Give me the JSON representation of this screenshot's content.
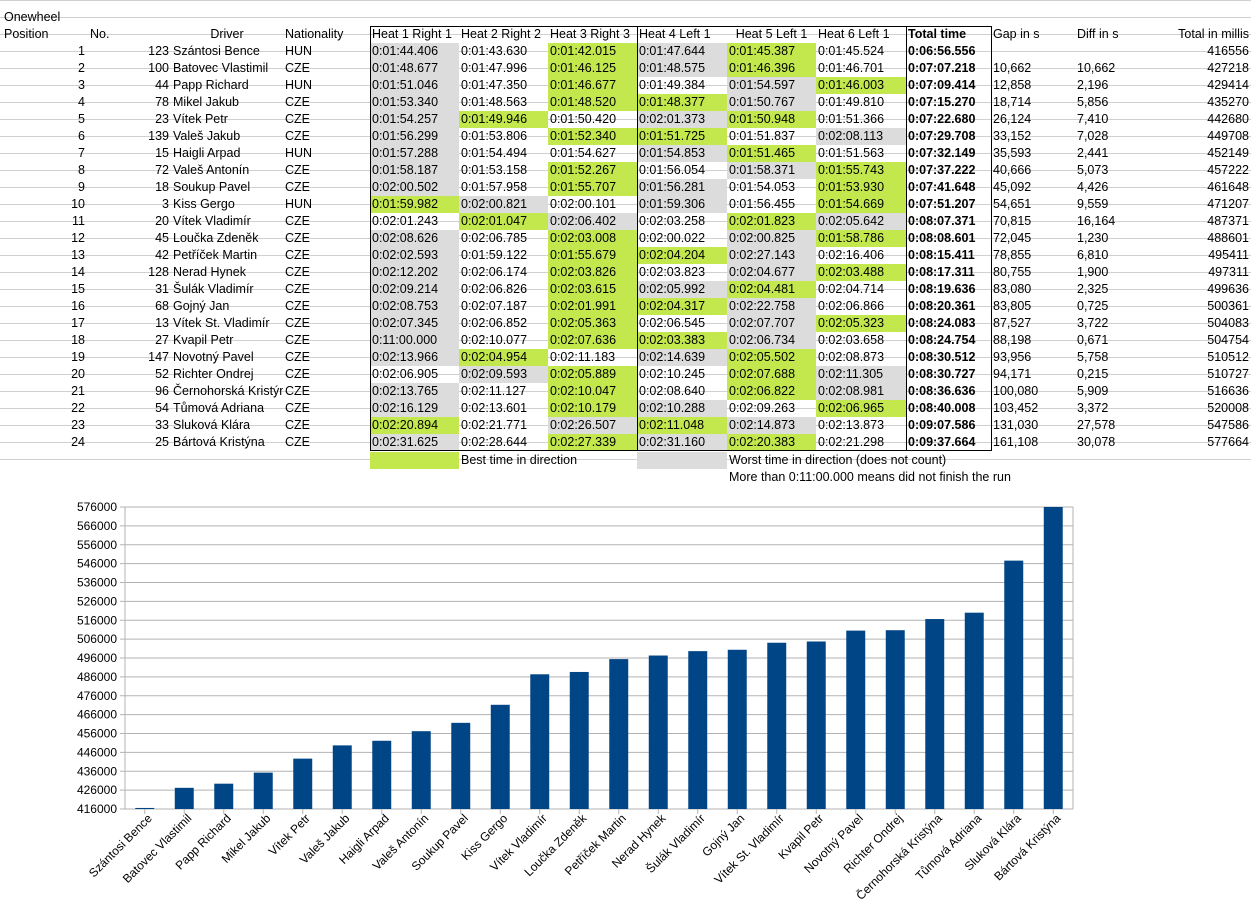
{
  "sheet": {
    "title": "Onewheel",
    "headers": [
      "Position",
      "No.",
      "Driver",
      "Nationality",
      "Heat 1 Right 1",
      "Heat 2 Right 2",
      "Heat 3 Right 3",
      "Heat 4 Left 1",
      "Heat 5 Left 1",
      "Heat 6 Left 1",
      "Total time",
      "Gap in s",
      "Diff in s",
      "Total in millis"
    ],
    "rows": [
      {
        "pos": "1",
        "no": "123",
        "driver": "Szántosi Bence",
        "nat": "HUN",
        "heats": [
          "0:01:44.406",
          "0:01:43.630",
          "0:01:42.015",
          "0:01:47.644",
          "0:01:45.387",
          "0:01:45.524"
        ],
        "marks": [
          "w",
          "",
          "b",
          "w",
          "b",
          ""
        ],
        "total": "0:06:56.556",
        "gap": "",
        "diff": "",
        "millis": "416556"
      },
      {
        "pos": "2",
        "no": "100",
        "driver": "Batovec Vlastimil",
        "nat": "CZE",
        "heats": [
          "0:01:48.677",
          "0:01:47.996",
          "0:01:46.125",
          "0:01:48.575",
          "0:01:46.396",
          "0:01:46.701"
        ],
        "marks": [
          "w",
          "",
          "b",
          "w",
          "b",
          ""
        ],
        "total": "0:07:07.218",
        "gap": "10,662",
        "diff": "10,662",
        "millis": "427218"
      },
      {
        "pos": "3",
        "no": "44",
        "driver": "Papp Richard",
        "nat": "HUN",
        "heats": [
          "0:01:51.046",
          "0:01:47.350",
          "0:01:46.677",
          "0:01:49.384",
          "0:01:54.597",
          "0:01:46.003"
        ],
        "marks": [
          "w",
          "",
          "b",
          "",
          "w",
          "b"
        ],
        "total": "0:07:09.414",
        "gap": "12,858",
        "diff": "2,196",
        "millis": "429414"
      },
      {
        "pos": "4",
        "no": "78",
        "driver": "Mikel Jakub",
        "nat": "CZE",
        "heats": [
          "0:01:53.340",
          "0:01:48.563",
          "0:01:48.520",
          "0:01:48.377",
          "0:01:50.767",
          "0:01:49.810"
        ],
        "marks": [
          "w",
          "",
          "b",
          "b",
          "w",
          ""
        ],
        "total": "0:07:15.270",
        "gap": "18,714",
        "diff": "5,856",
        "millis": "435270"
      },
      {
        "pos": "5",
        "no": "23",
        "driver": "Vítek Petr",
        "nat": "CZE",
        "heats": [
          "0:01:54.257",
          "0:01:49.946",
          "0:01:50.420",
          "0:02:01.373",
          "0:01:50.948",
          "0:01:51.366"
        ],
        "marks": [
          "w",
          "b",
          "",
          "w",
          "b",
          ""
        ],
        "total": "0:07:22.680",
        "gap": "26,124",
        "diff": "7,410",
        "millis": "442680"
      },
      {
        "pos": "6",
        "no": "139",
        "driver": "Valeš Jakub",
        "nat": "CZE",
        "heats": [
          "0:01:56.299",
          "0:01:53.806",
          "0:01:52.340",
          "0:01:51.725",
          "0:01:51.837",
          "0:02:08.113"
        ],
        "marks": [
          "w",
          "",
          "b",
          "b",
          "",
          "w"
        ],
        "total": "0:07:29.708",
        "gap": "33,152",
        "diff": "7,028",
        "millis": "449708"
      },
      {
        "pos": "7",
        "no": "15",
        "driver": "Haigli Arpad",
        "nat": "HUN",
        "heats": [
          "0:01:57.288",
          "0:01:54.494",
          "0:01:54.627",
          "0:01:54.853",
          "0:01:51.465",
          "0:01:51.563"
        ],
        "marks": [
          "w",
          "",
          "",
          "w",
          "b",
          ""
        ],
        "total": "0:07:32.149",
        "gap": "35,593",
        "diff": "2,441",
        "millis": "452149"
      },
      {
        "pos": "8",
        "no": "72",
        "driver": "Valeš Antonín",
        "nat": "CZE",
        "heats": [
          "0:01:58.187",
          "0:01:53.158",
          "0:01:52.267",
          "0:01:56.054",
          "0:01:58.371",
          "0:01:55.743"
        ],
        "marks": [
          "w",
          "",
          "b",
          "",
          "w",
          "b"
        ],
        "total": "0:07:37.222",
        "gap": "40,666",
        "diff": "5,073",
        "millis": "457222"
      },
      {
        "pos": "9",
        "no": "18",
        "driver": "Soukup Pavel",
        "nat": "CZE",
        "heats": [
          "0:02:00.502",
          "0:01:57.958",
          "0:01:55.707",
          "0:01:56.281",
          "0:01:54.053",
          "0:01:53.930"
        ],
        "marks": [
          "w",
          "",
          "b",
          "w",
          "",
          "b"
        ],
        "total": "0:07:41.648",
        "gap": "45,092",
        "diff": "4,426",
        "millis": "461648"
      },
      {
        "pos": "10",
        "no": "3",
        "driver": "Kiss Gergo",
        "nat": "HUN",
        "heats": [
          "0:01:59.982",
          "0:02:00.821",
          "0:02:00.101",
          "0:01:59.306",
          "0:01:56.455",
          "0:01:54.669"
        ],
        "marks": [
          "b",
          "w",
          "",
          "w",
          "",
          "b"
        ],
        "total": "0:07:51.207",
        "gap": "54,651",
        "diff": "9,559",
        "millis": "471207"
      },
      {
        "pos": "11",
        "no": "20",
        "driver": "Vítek Vladimír",
        "nat": "CZE",
        "heats": [
          "0:02:01.243",
          "0:02:01.047",
          "0:02:06.402",
          "0:02:03.258",
          "0:02:01.823",
          "0:02:05.642"
        ],
        "marks": [
          "",
          "b",
          "w",
          "",
          "b",
          "w"
        ],
        "total": "0:08:07.371",
        "gap": "70,815",
        "diff": "16,164",
        "millis": "487371"
      },
      {
        "pos": "12",
        "no": "45",
        "driver": "Loučka Zdeněk",
        "nat": "CZE",
        "heats": [
          "0:02:08.626",
          "0:02:06.785",
          "0:02:03.008",
          "0:02:00.022",
          "0:02:00.825",
          "0:01:58.786"
        ],
        "marks": [
          "w",
          "",
          "b",
          "",
          "w",
          "b"
        ],
        "total": "0:08:08.601",
        "gap": "72,045",
        "diff": "1,230",
        "millis": "488601"
      },
      {
        "pos": "13",
        "no": "42",
        "driver": "Petříček Martin",
        "nat": "CZE",
        "heats": [
          "0:02:02.593",
          "0:01:59.122",
          "0:01:55.679",
          "0:02:04.204",
          "0:02:27.143",
          "0:02:16.406"
        ],
        "marks": [
          "w",
          "",
          "b",
          "b",
          "w",
          ""
        ],
        "total": "0:08:15.411",
        "gap": "78,855",
        "diff": "6,810",
        "millis": "495411"
      },
      {
        "pos": "14",
        "no": "128",
        "driver": "Nerad Hynek",
        "nat": "CZE",
        "heats": [
          "0:02:12.202",
          "0:02:06.174",
          "0:02:03.826",
          "0:02:03.823",
          "0:02:04.677",
          "0:02:03.488"
        ],
        "marks": [
          "w",
          "",
          "b",
          "",
          "w",
          "b"
        ],
        "total": "0:08:17.311",
        "gap": "80,755",
        "diff": "1,900",
        "millis": "497311"
      },
      {
        "pos": "15",
        "no": "31",
        "driver": "Šulák Vladimír",
        "nat": "CZE",
        "heats": [
          "0:02:09.214",
          "0:02:06.826",
          "0:02:03.615",
          "0:02:05.992",
          "0:02:04.481",
          "0:02:04.714"
        ],
        "marks": [
          "w",
          "",
          "b",
          "w",
          "b",
          ""
        ],
        "total": "0:08:19.636",
        "gap": "83,080",
        "diff": "2,325",
        "millis": "499636"
      },
      {
        "pos": "16",
        "no": "68",
        "driver": "Gojný Jan",
        "nat": "CZE",
        "heats": [
          "0:02:08.753",
          "0:02:07.187",
          "0:02:01.991",
          "0:02:04.317",
          "0:02:22.758",
          "0:02:06.866"
        ],
        "marks": [
          "w",
          "",
          "b",
          "b",
          "w",
          ""
        ],
        "total": "0:08:20.361",
        "gap": "83,805",
        "diff": "0,725",
        "millis": "500361"
      },
      {
        "pos": "17",
        "no": "13",
        "driver": "Vítek St. Vladimír",
        "nat": "CZE",
        "heats": [
          "0:02:07.345",
          "0:02:06.852",
          "0:02:05.363",
          "0:02:06.545",
          "0:02:07.707",
          "0:02:05.323"
        ],
        "marks": [
          "w",
          "",
          "b",
          "",
          "w",
          "b"
        ],
        "total": "0:08:24.083",
        "gap": "87,527",
        "diff": "3,722",
        "millis": "504083"
      },
      {
        "pos": "18",
        "no": "27",
        "driver": "Kvapil Petr",
        "nat": "CZE",
        "heats": [
          "0:11:00.000",
          "0:02:10.077",
          "0:02:07.636",
          "0:02:03.383",
          "0:02:06.734",
          "0:02:03.658"
        ],
        "marks": [
          "w",
          "",
          "b",
          "b",
          "w",
          ""
        ],
        "total": "0:08:24.754",
        "gap": "88,198",
        "diff": "0,671",
        "millis": "504754"
      },
      {
        "pos": "19",
        "no": "147",
        "driver": "Novotný Pavel",
        "nat": "CZE",
        "heats": [
          "0:02:13.966",
          "0:02:04.954",
          "0:02:11.183",
          "0:02:14.639",
          "0:02:05.502",
          "0:02:08.873"
        ],
        "marks": [
          "w",
          "b",
          "",
          "w",
          "b",
          ""
        ],
        "total": "0:08:30.512",
        "gap": "93,956",
        "diff": "5,758",
        "millis": "510512"
      },
      {
        "pos": "20",
        "no": "52",
        "driver": "Richter Ondrej",
        "nat": "CZE",
        "heats": [
          "0:02:06.905",
          "0:02:09.593",
          "0:02:05.889",
          "0:02:10.245",
          "0:02:07.688",
          "0:02:11.305"
        ],
        "marks": [
          "",
          "w",
          "b",
          "",
          "b",
          "w"
        ],
        "total": "0:08:30.727",
        "gap": "94,171",
        "diff": "0,215",
        "millis": "510727"
      },
      {
        "pos": "21",
        "no": "96",
        "driver": "Černohorská Kristýna",
        "nat": "CZE",
        "heats": [
          "0:02:13.765",
          "0:02:11.127",
          "0:02:10.047",
          "0:02:08.640",
          "0:02:06.822",
          "0:02:08.981"
        ],
        "marks": [
          "w",
          "",
          "b",
          "",
          "b",
          "w"
        ],
        "total": "0:08:36.636",
        "gap": "100,080",
        "diff": "5,909",
        "millis": "516636"
      },
      {
        "pos": "22",
        "no": "54",
        "driver": "Tůmová Adriana",
        "nat": "CZE",
        "heats": [
          "0:02:16.129",
          "0:02:13.601",
          "0:02:10.179",
          "0:02:10.288",
          "0:02:09.263",
          "0:02:06.965"
        ],
        "marks": [
          "w",
          "",
          "b",
          "w",
          "",
          "b"
        ],
        "total": "0:08:40.008",
        "gap": "103,452",
        "diff": "3,372",
        "millis": "520008"
      },
      {
        "pos": "23",
        "no": "33",
        "driver": "Sluková Klára",
        "nat": "CZE",
        "heats": [
          "0:02:20.894",
          "0:02:21.771",
          "0:02:26.507",
          "0:02:11.048",
          "0:02:14.873",
          "0:02:13.873"
        ],
        "marks": [
          "b",
          "",
          "w",
          "b",
          "w",
          ""
        ],
        "total": "0:09:07.586",
        "gap": "131,030",
        "diff": "27,578",
        "millis": "547586"
      },
      {
        "pos": "24",
        "no": "25",
        "driver": "Bártová Kristýna",
        "nat": "CZE",
        "heats": [
          "0:02:31.625",
          "0:02:28.644",
          "0:02:27.339",
          "0:02:31.160",
          "0:02:20.383",
          "0:02:21.298"
        ],
        "marks": [
          "w",
          "",
          "b",
          "w",
          "b",
          ""
        ],
        "total": "0:09:37.664",
        "gap": "161,108",
        "diff": "30,078",
        "millis": "577664"
      }
    ],
    "legend": {
      "best": "Best time in direction",
      "worst": "Worst time in direction (does not count)",
      "note": "More than 0:11:00.000 means did not finish the run"
    },
    "colors": {
      "best": "#c2e84e",
      "worst": "#dcdcdc",
      "bar": "#004586"
    }
  },
  "chart_data": {
    "type": "bar",
    "title": "",
    "xlabel": "",
    "ylabel": "",
    "categories": [
      "Szántosi Bence",
      "Batovec Vlastimil",
      "Papp Richard",
      "Mikel Jakub",
      "Vítek Petr",
      "Valeš Jakub",
      "Haigli Arpad",
      "Valeš Antonín",
      "Soukup Pavel",
      "Kiss Gergo",
      "Vítek Vladimír",
      "Loučka Zdeněk",
      "Petříček Martin",
      "Nerad Hynek",
      "Šulák Vladimír",
      "Gojný Jan",
      "Vítek St. Vladimír",
      "Kvapil Petr",
      "Novotný Pavel",
      "Richter Ondrej",
      "Černohorská Kristýna",
      "Tůmová Adriana",
      "Sluková Klára",
      "Bártová Kristýna"
    ],
    "values": [
      416556,
      427218,
      429414,
      435270,
      442680,
      449708,
      452149,
      457222,
      461648,
      471207,
      487371,
      488601,
      495411,
      497311,
      499636,
      500361,
      504083,
      504754,
      510512,
      510727,
      516636,
      520008,
      547586,
      577664
    ],
    "ylim": [
      416000,
      576000
    ],
    "yticks": [
      "416000",
      "426000",
      "436000",
      "446000",
      "456000",
      "466000",
      "476000",
      "486000",
      "496000",
      "506000",
      "516000",
      "526000",
      "536000",
      "546000",
      "556000",
      "566000",
      "576000"
    ],
    "grid": true,
    "legend": "none",
    "color": "#004586"
  }
}
